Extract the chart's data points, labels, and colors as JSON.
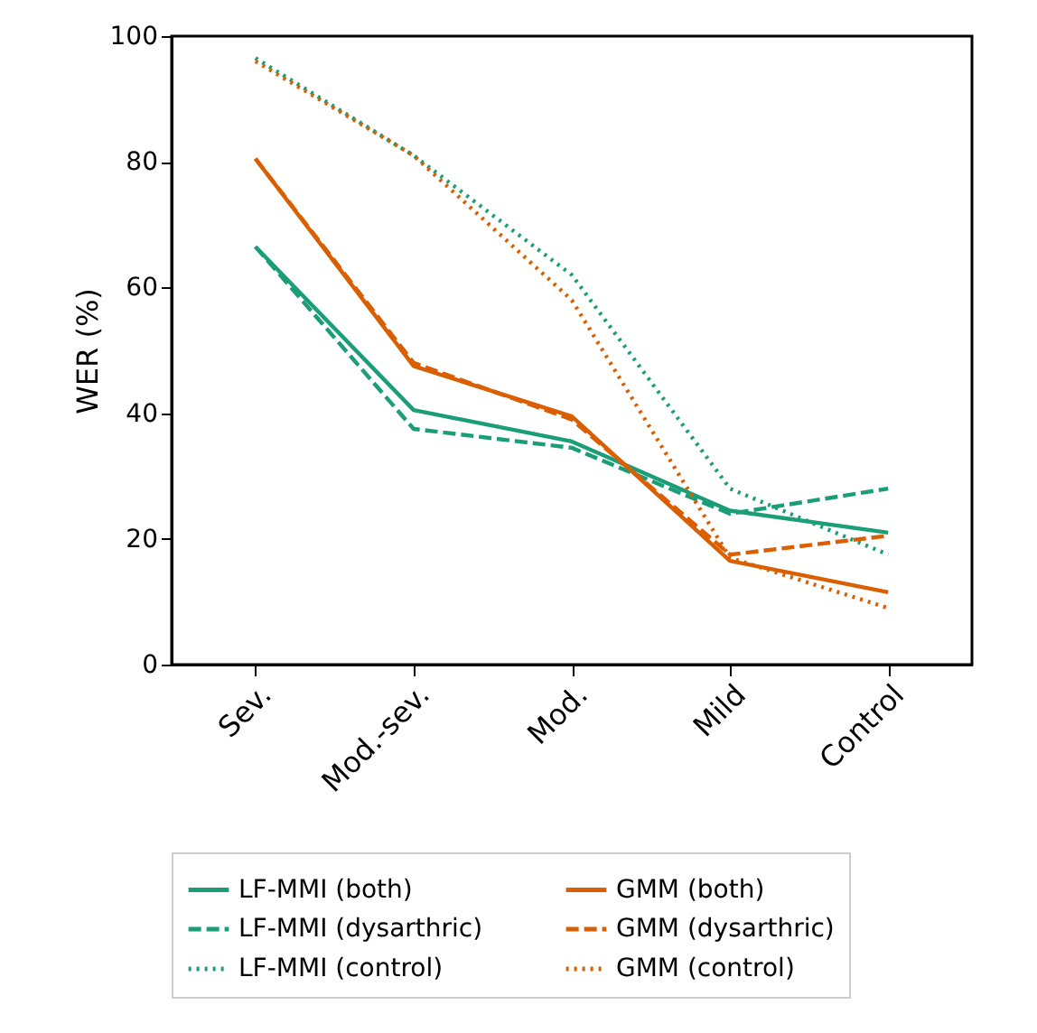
{
  "chart_data": {
    "type": "line",
    "ylabel": "WER (%)",
    "categories": [
      "Sev.",
      "Mod.-sev.",
      "Mod.",
      "Mild",
      "Control"
    ],
    "series": [
      {
        "name": "LF-MMI (both)",
        "color": "#1b9e77",
        "line_style": "solid",
        "values": [
          66.5,
          40.5,
          35.5,
          24.5,
          21
        ]
      },
      {
        "name": "LF-MMI (dysarthric)",
        "color": "#1b9e77",
        "line_style": "dashed",
        "values": [
          66.5,
          37.5,
          34.5,
          24,
          28
        ]
      },
      {
        "name": "LF-MMI (control)",
        "color": "#1b9e77",
        "line_style": "dotted",
        "values": [
          96.5,
          81,
          62,
          28,
          17.5
        ]
      },
      {
        "name": "GMM (both)",
        "color": "#d95f02",
        "line_style": "solid",
        "values": [
          80.5,
          47.5,
          39.5,
          16.5,
          11.5
        ]
      },
      {
        "name": "GMM (dysarthric)",
        "color": "#d95f02",
        "line_style": "dashed",
        "values": [
          80.5,
          48,
          39,
          17.5,
          20.5
        ]
      },
      {
        "name": "GMM (control)",
        "color": "#d95f02",
        "line_style": "dotted",
        "values": [
          96,
          81,
          58,
          17,
          9
        ]
      }
    ],
    "ylim": [
      0,
      100
    ],
    "yticks": [
      0,
      20,
      40,
      60,
      80,
      100
    ],
    "grid": false,
    "legend": "bottom",
    "marker": "none"
  }
}
